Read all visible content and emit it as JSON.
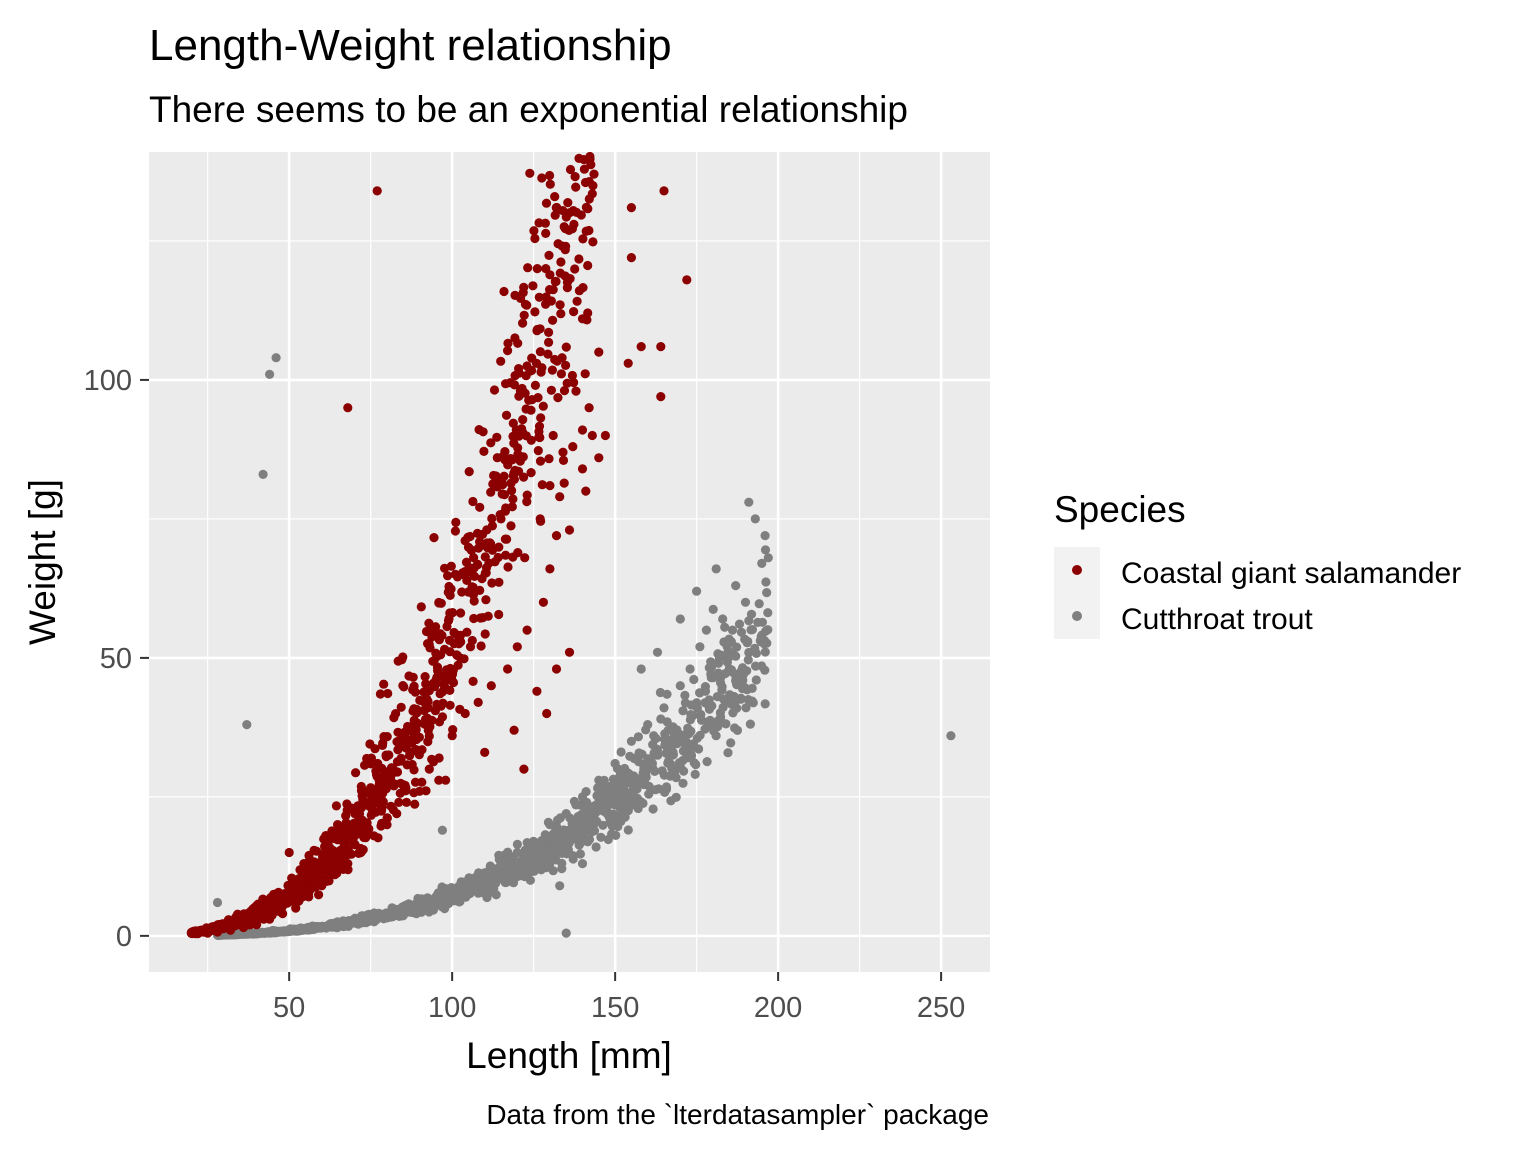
{
  "chart_data": {
    "type": "scatter",
    "title": "Length-Weight relationship",
    "subtitle": "There seems to be an exponential relationship",
    "caption": "Data from the `lterdatasampler` package",
    "xlabel": "Length [mm]",
    "ylabel": "Weight [g]",
    "xlim": [
      7,
      265
    ],
    "ylim": [
      -6.5,
      141
    ],
    "x_ticks": [
      50,
      100,
      150,
      200,
      250
    ],
    "y_ticks": [
      0,
      50,
      100
    ],
    "x_ticks_minor": [
      25,
      75,
      125,
      175,
      225
    ],
    "y_ticks_minor": [
      25,
      75,
      125
    ],
    "grid": true,
    "panel_background": "#ebebeb",
    "legend": {
      "title": "Species",
      "placement": "right",
      "entries": [
        "Coastal giant salamander",
        "Cutthroat trout"
      ]
    },
    "series": [
      {
        "name": "Coastal giant salamander",
        "color": "#8b0000",
        "trend": {
          "a": 0.000107,
          "b": 2.85,
          "x_min": 20,
          "x_max": 145,
          "spread": 0.16
        },
        "points": [
          [
            77,
            134
          ],
          [
            165,
            134
          ],
          [
            155,
            131
          ],
          [
            155,
            122
          ],
          [
            172,
            118
          ],
          [
            140,
            111
          ],
          [
            145,
            105
          ],
          [
            158,
            106
          ],
          [
            164,
            106
          ],
          [
            154,
            103
          ],
          [
            164,
            97
          ],
          [
            68,
            95
          ],
          [
            138,
            98
          ],
          [
            142,
            95
          ],
          [
            140,
            91
          ],
          [
            143,
            90
          ],
          [
            147,
            90
          ],
          [
            131,
            90
          ],
          [
            137,
            88
          ],
          [
            134,
            87
          ],
          [
            130,
            81
          ],
          [
            145,
            86
          ],
          [
            140,
            84
          ],
          [
            133,
            79
          ],
          [
            127,
            75
          ],
          [
            115,
            75
          ],
          [
            141,
            80
          ],
          [
            132,
            72
          ],
          [
            136,
            73
          ],
          [
            130,
            66
          ],
          [
            128,
            60
          ],
          [
            123,
            55
          ],
          [
            120,
            52
          ],
          [
            117,
            48
          ],
          [
            112,
            45
          ],
          [
            108,
            42
          ],
          [
            104,
            40
          ],
          [
            100,
            36
          ],
          [
            96,
            32
          ],
          [
            93,
            30
          ],
          [
            90,
            26
          ],
          [
            86,
            24
          ],
          [
            83,
            22
          ],
          [
            80,
            20
          ],
          [
            76,
            18
          ],
          [
            72,
            15
          ],
          [
            68,
            13
          ],
          [
            64,
            11
          ],
          [
            60,
            9
          ],
          [
            56,
            7
          ],
          [
            52,
            5
          ],
          [
            48,
            4
          ],
          [
            44,
            3
          ],
          [
            40,
            2
          ],
          [
            36,
            1.5
          ],
          [
            32,
            1
          ],
          [
            28,
            0.7
          ],
          [
            25,
            0.5
          ],
          [
            22,
            0.4
          ],
          [
            78,
            43.5
          ],
          [
            122,
            30
          ],
          [
            69,
            23
          ],
          [
            50,
            15
          ],
          [
            132,
            48
          ],
          [
            136,
            51
          ],
          [
            119,
            37
          ],
          [
            129,
            40
          ],
          [
            126,
            44
          ],
          [
            110,
            33
          ],
          [
            98,
            28
          ]
        ]
      },
      {
        "name": "Cutthroat trout",
        "color": "#7f7f7f",
        "trend": {
          "a": 7.5e-06,
          "b": 2.99,
          "x_min": 28,
          "x_max": 197,
          "spread": 0.12
        },
        "points": [
          [
            46,
            104
          ],
          [
            44,
            101
          ],
          [
            42,
            83
          ],
          [
            37,
            38
          ],
          [
            253,
            36
          ],
          [
            28,
            6
          ],
          [
            135,
            0.5
          ],
          [
            191,
            78
          ],
          [
            193,
            75
          ],
          [
            196,
            72
          ],
          [
            195,
            67
          ],
          [
            197,
            68
          ],
          [
            181,
            66
          ],
          [
            187,
            63
          ],
          [
            190,
            60
          ],
          [
            183,
            57
          ],
          [
            186,
            55
          ],
          [
            178,
            55
          ],
          [
            176,
            52
          ],
          [
            180,
            49
          ],
          [
            173,
            48
          ],
          [
            170,
            45
          ],
          [
            165,
            41
          ],
          [
            160,
            38
          ],
          [
            155,
            35
          ],
          [
            150,
            31
          ],
          [
            145,
            28
          ],
          [
            140,
            25
          ],
          [
            135,
            22
          ],
          [
            130,
            20
          ],
          [
            125,
            17
          ],
          [
            120,
            15
          ],
          [
            115,
            13
          ],
          [
            110,
            11
          ],
          [
            105,
            9
          ],
          [
            100,
            8
          ],
          [
            95,
            7
          ],
          [
            90,
            6
          ],
          [
            85,
            5
          ],
          [
            80,
            4
          ],
          [
            75,
            3
          ],
          [
            70,
            2.5
          ],
          [
            65,
            2
          ],
          [
            60,
            1.5
          ],
          [
            55,
            1.2
          ],
          [
            50,
            1
          ],
          [
            45,
            0.8
          ],
          [
            40,
            0.6
          ],
          [
            35,
            0.4
          ],
          [
            30,
            0.3
          ],
          [
            97,
            19
          ],
          [
            128,
            14
          ],
          [
            140,
            13
          ],
          [
            133,
            9
          ],
          [
            124,
            10
          ],
          [
            170,
            57
          ],
          [
            175,
            62
          ],
          [
            182,
            50
          ],
          [
            163,
            51
          ],
          [
            158,
            48
          ]
        ]
      }
    ]
  }
}
